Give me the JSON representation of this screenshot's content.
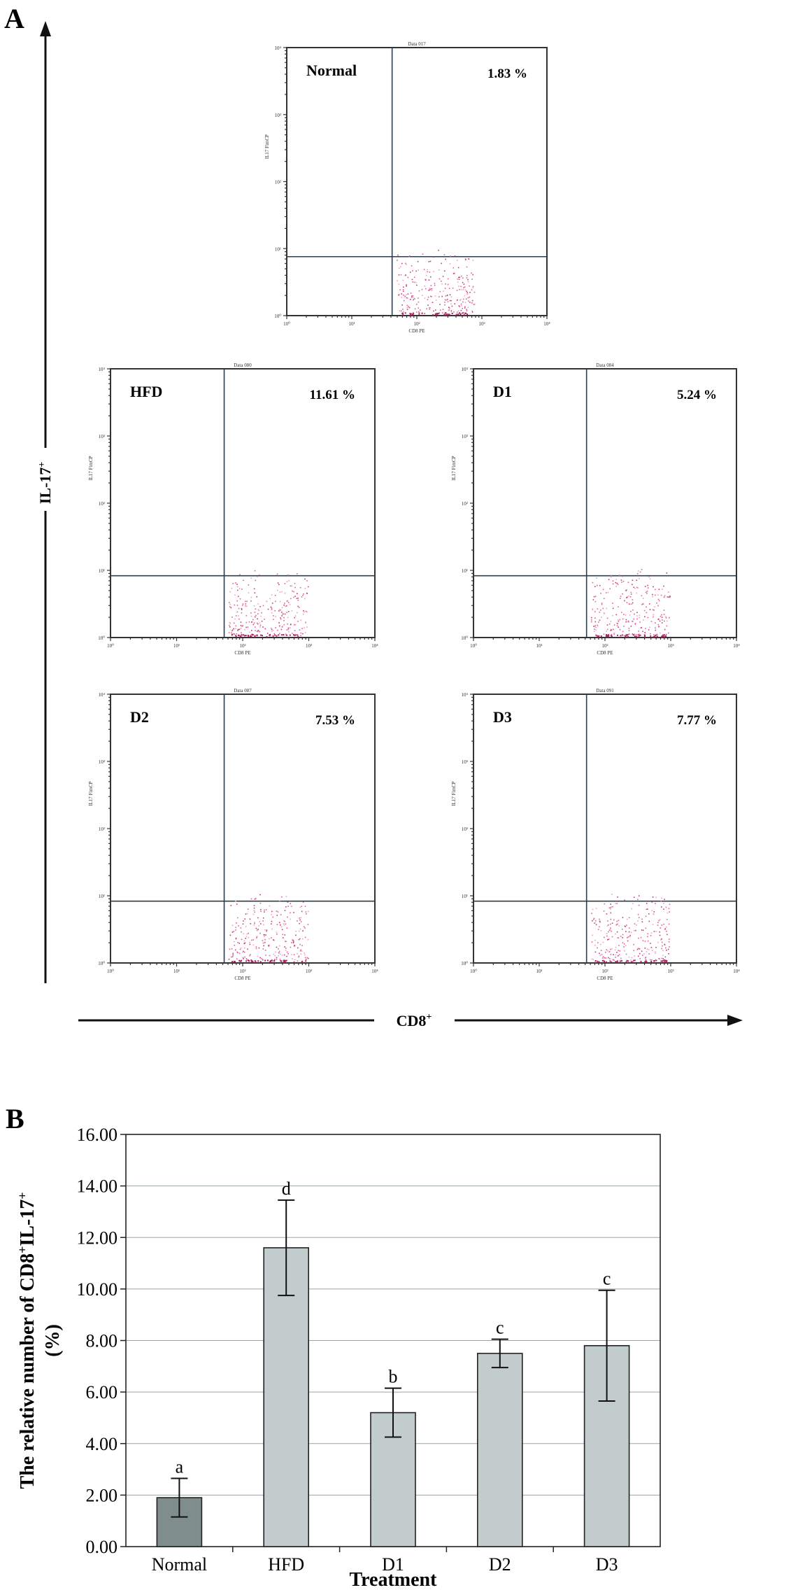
{
  "panelA": {
    "letter": "A",
    "y_axis_label": "IL-17",
    "y_axis_sup": "+",
    "x_axis_label": "CD8",
    "x_axis_sup": "+",
    "plots": [
      {
        "name": "Normal",
        "percent": "1.83 %",
        "data_label": "Data 017"
      },
      {
        "name": "HFD",
        "percent": "11.61 %",
        "data_label": "Data 080"
      },
      {
        "name": "D1",
        "percent": "5.24 %",
        "data_label": "Data 084"
      },
      {
        "name": "D2",
        "percent": "7.53 %",
        "data_label": "Data 087"
      },
      {
        "name": "D3",
        "percent": "7.77 %",
        "data_label": "Data 091"
      }
    ],
    "plot_axis_x_label": "CD8 PE",
    "plot_axis_y_label": "IL17 FimCP",
    "tick_labels": [
      "10⁰",
      "10¹",
      "10²",
      "10³",
      "10⁴"
    ]
  },
  "chart_data": {
    "type": "bar",
    "panel_letter": "B",
    "categories": [
      "Normal",
      "HFD",
      "D1",
      "D2",
      "D3"
    ],
    "values": [
      1.9,
      11.6,
      5.2,
      7.5,
      7.8
    ],
    "errors": [
      0.75,
      1.85,
      0.95,
      0.55,
      2.15
    ],
    "significance": [
      "a",
      "d",
      "b",
      "c",
      "c"
    ],
    "ylim": [
      0,
      16
    ],
    "yticks": [
      "0.00",
      "2.00",
      "4.00",
      "6.00",
      "8.00",
      "10.00",
      "12.00",
      "14.00",
      "16.00"
    ],
    "ylabel_line1": "The relative number of CD8",
    "ylabel_sup1": "+",
    "ylabel_mid": "IL-17",
    "ylabel_sup2": "+",
    "ylabel_line2": "(%)",
    "xlabel": "Treatment",
    "grid": true,
    "colors": {
      "normal": "#7f8e8d",
      "other": "#c3cccc"
    }
  }
}
